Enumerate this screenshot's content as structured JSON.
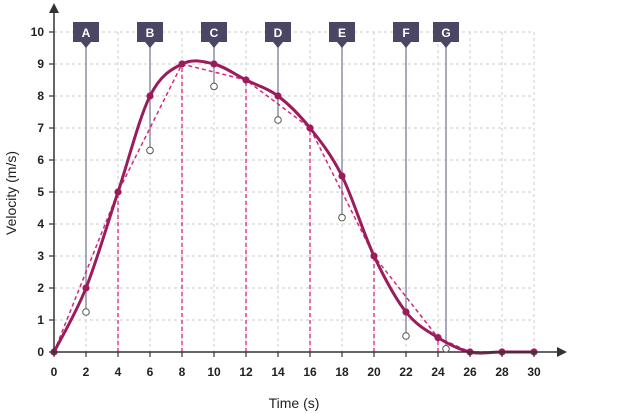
{
  "chart_data": {
    "type": "line",
    "title": "",
    "xlabel": "Time (s)",
    "ylabel": "Velocity (m/s)",
    "xlim": [
      0,
      30
    ],
    "ylim": [
      0,
      10
    ],
    "x_ticks": [
      0,
      2,
      4,
      6,
      8,
      10,
      12,
      14,
      16,
      18,
      20,
      22,
      24,
      26,
      28,
      30
    ],
    "y_ticks": [
      0,
      1,
      2,
      3,
      4,
      5,
      6,
      7,
      8,
      9,
      10
    ],
    "grid": true,
    "series": [
      {
        "style": "solid-curve",
        "x": [
          0,
          2,
          4,
          6,
          8,
          10,
          12,
          14,
          16,
          18,
          20,
          22,
          24,
          26,
          28,
          30
        ],
        "y": [
          0,
          2,
          5,
          8,
          9,
          9,
          8.5,
          8,
          7,
          5.5,
          3,
          1.25,
          0.45,
          0,
          0,
          0
        ]
      },
      {
        "style": "dashed-segments",
        "x": [
          0,
          4,
          8,
          12,
          16,
          20,
          24,
          26,
          30
        ],
        "y": [
          0,
          5,
          9,
          8.5,
          7,
          3,
          0.45,
          0,
          0
        ]
      }
    ],
    "dashed_verticals_x": [
      4,
      8,
      12,
      16,
      20,
      24
    ],
    "markers": [
      {
        "label": "A",
        "x": 2,
        "y": 1.25
      },
      {
        "label": "B",
        "x": 6,
        "y": 6.3
      },
      {
        "label": "C",
        "x": 10,
        "y": 8.3
      },
      {
        "label": "D",
        "x": 14,
        "y": 7.25
      },
      {
        "label": "E",
        "x": 18,
        "y": 4.2
      },
      {
        "label": "F",
        "x": 22,
        "y": 0.5
      },
      {
        "label": "G",
        "x": 24.5,
        "y": 0.1
      }
    ],
    "colors": {
      "curve": "#9b1c5c",
      "dashed": "#d4277a",
      "marker_fill": "#4a4663",
      "marker_line": "#8e8ea6",
      "grid": "#cccccc",
      "axis": "#333333"
    }
  }
}
